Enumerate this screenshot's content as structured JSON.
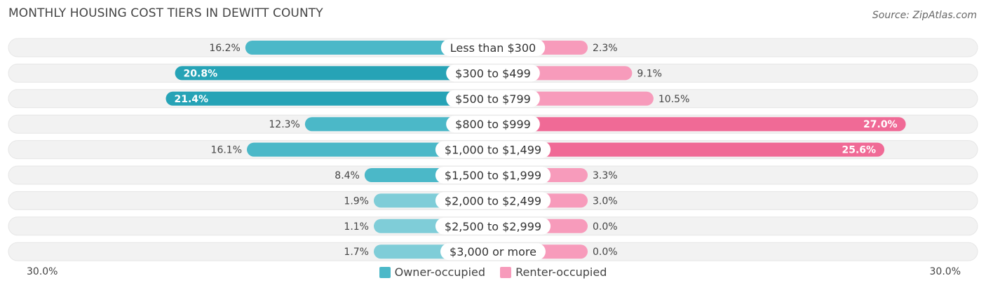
{
  "title": "MONTHLY HOUSING COST TIERS IN DEWITT COUNTY",
  "source": "Source: ZipAtlas.com",
  "axis": {
    "left_label": "30.0%",
    "right_label": "30.0%"
  },
  "legend": {
    "owner": "Owner-occupied",
    "renter": "Renter-occupied"
  },
  "colors": {
    "owner": "#4bb8c8",
    "owner_strong": "#26a3b6",
    "renter": "#f79bbb",
    "renter_strong": "#f06a96",
    "track": "#f2f2f2"
  },
  "chart_data": {
    "type": "bar",
    "orientation": "diverging-horizontal",
    "max": 30.0,
    "categories": [
      "Less than $300",
      "$300 to $499",
      "$500 to $799",
      "$800 to $999",
      "$1,000 to $1,499",
      "$1,500 to $1,999",
      "$2,000 to $2,499",
      "$2,500 to $2,999",
      "$3,000 or more"
    ],
    "series": [
      {
        "name": "Owner-occupied",
        "values": [
          16.2,
          20.8,
          21.4,
          12.3,
          16.1,
          8.4,
          1.9,
          1.1,
          1.7
        ],
        "labels": [
          "16.2%",
          "20.8%",
          "21.4%",
          "12.3%",
          "16.1%",
          "8.4%",
          "1.9%",
          "1.1%",
          "1.7%"
        ]
      },
      {
        "name": "Renter-occupied",
        "values": [
          2.3,
          9.1,
          10.5,
          27.0,
          25.6,
          3.3,
          3.0,
          0.0,
          0.0
        ],
        "labels": [
          "2.3%",
          "9.1%",
          "10.5%",
          "27.0%",
          "25.6%",
          "3.3%",
          "3.0%",
          "0.0%",
          "0.0%"
        ]
      }
    ]
  }
}
